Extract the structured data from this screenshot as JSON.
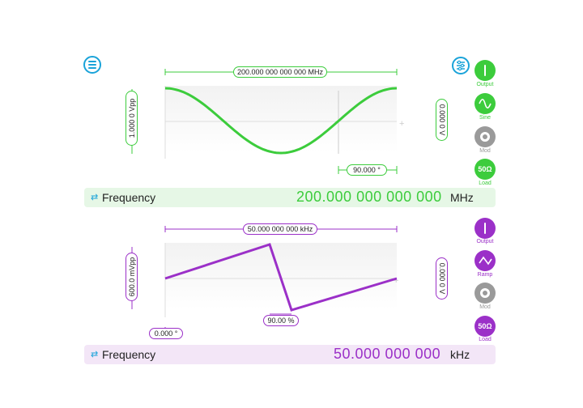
{
  "colors": {
    "ch1": "#3ccc3c",
    "ch1_bar_bg": "#e6f7e6",
    "ch2": "#9b30c8",
    "ch2_bar_bg": "#f3e6f7",
    "accent": "#1aa3d9",
    "grey": "#9a9a9a"
  },
  "toolbar": {
    "menu_icon": "hamburger-menu-icon",
    "settings_icon": "sliders-icon"
  },
  "ch1": {
    "waveform": "sine",
    "frequency_pill": "200.000 000 000 000 MHz",
    "amplitude_pill": "1.000 0 Vpp",
    "offset_pill": "0.000 0 V",
    "phase_pill": "90.000 °",
    "buttons": [
      {
        "label": "Output",
        "icon": "power-icon"
      },
      {
        "label": "Sine",
        "icon": "sine-wave-icon"
      },
      {
        "label": "Mod",
        "icon": "modulation-icon"
      },
      {
        "label": "Load",
        "icon": "50Ω"
      }
    ],
    "freq_label": "Frequency",
    "freq_value": "200.000 000 000 000",
    "freq_unit": "MHz"
  },
  "ch2": {
    "waveform": "ramp",
    "frequency_pill": "50.000 000 000 kHz",
    "amplitude_pill": "600.0 mVpp",
    "offset_pill": "0.000 0 V",
    "phase_pill": "0.000 °",
    "symmetry_pill": "90.00 %",
    "buttons": [
      {
        "label": "Output",
        "icon": "power-icon"
      },
      {
        "label": "Ramp",
        "icon": "ramp-wave-icon"
      },
      {
        "label": "Mod",
        "icon": "modulation-icon"
      },
      {
        "label": "Load",
        "icon": "50Ω"
      }
    ],
    "freq_label": "Frequency",
    "freq_value": "50.000 000 000",
    "freq_unit": "kHz"
  }
}
